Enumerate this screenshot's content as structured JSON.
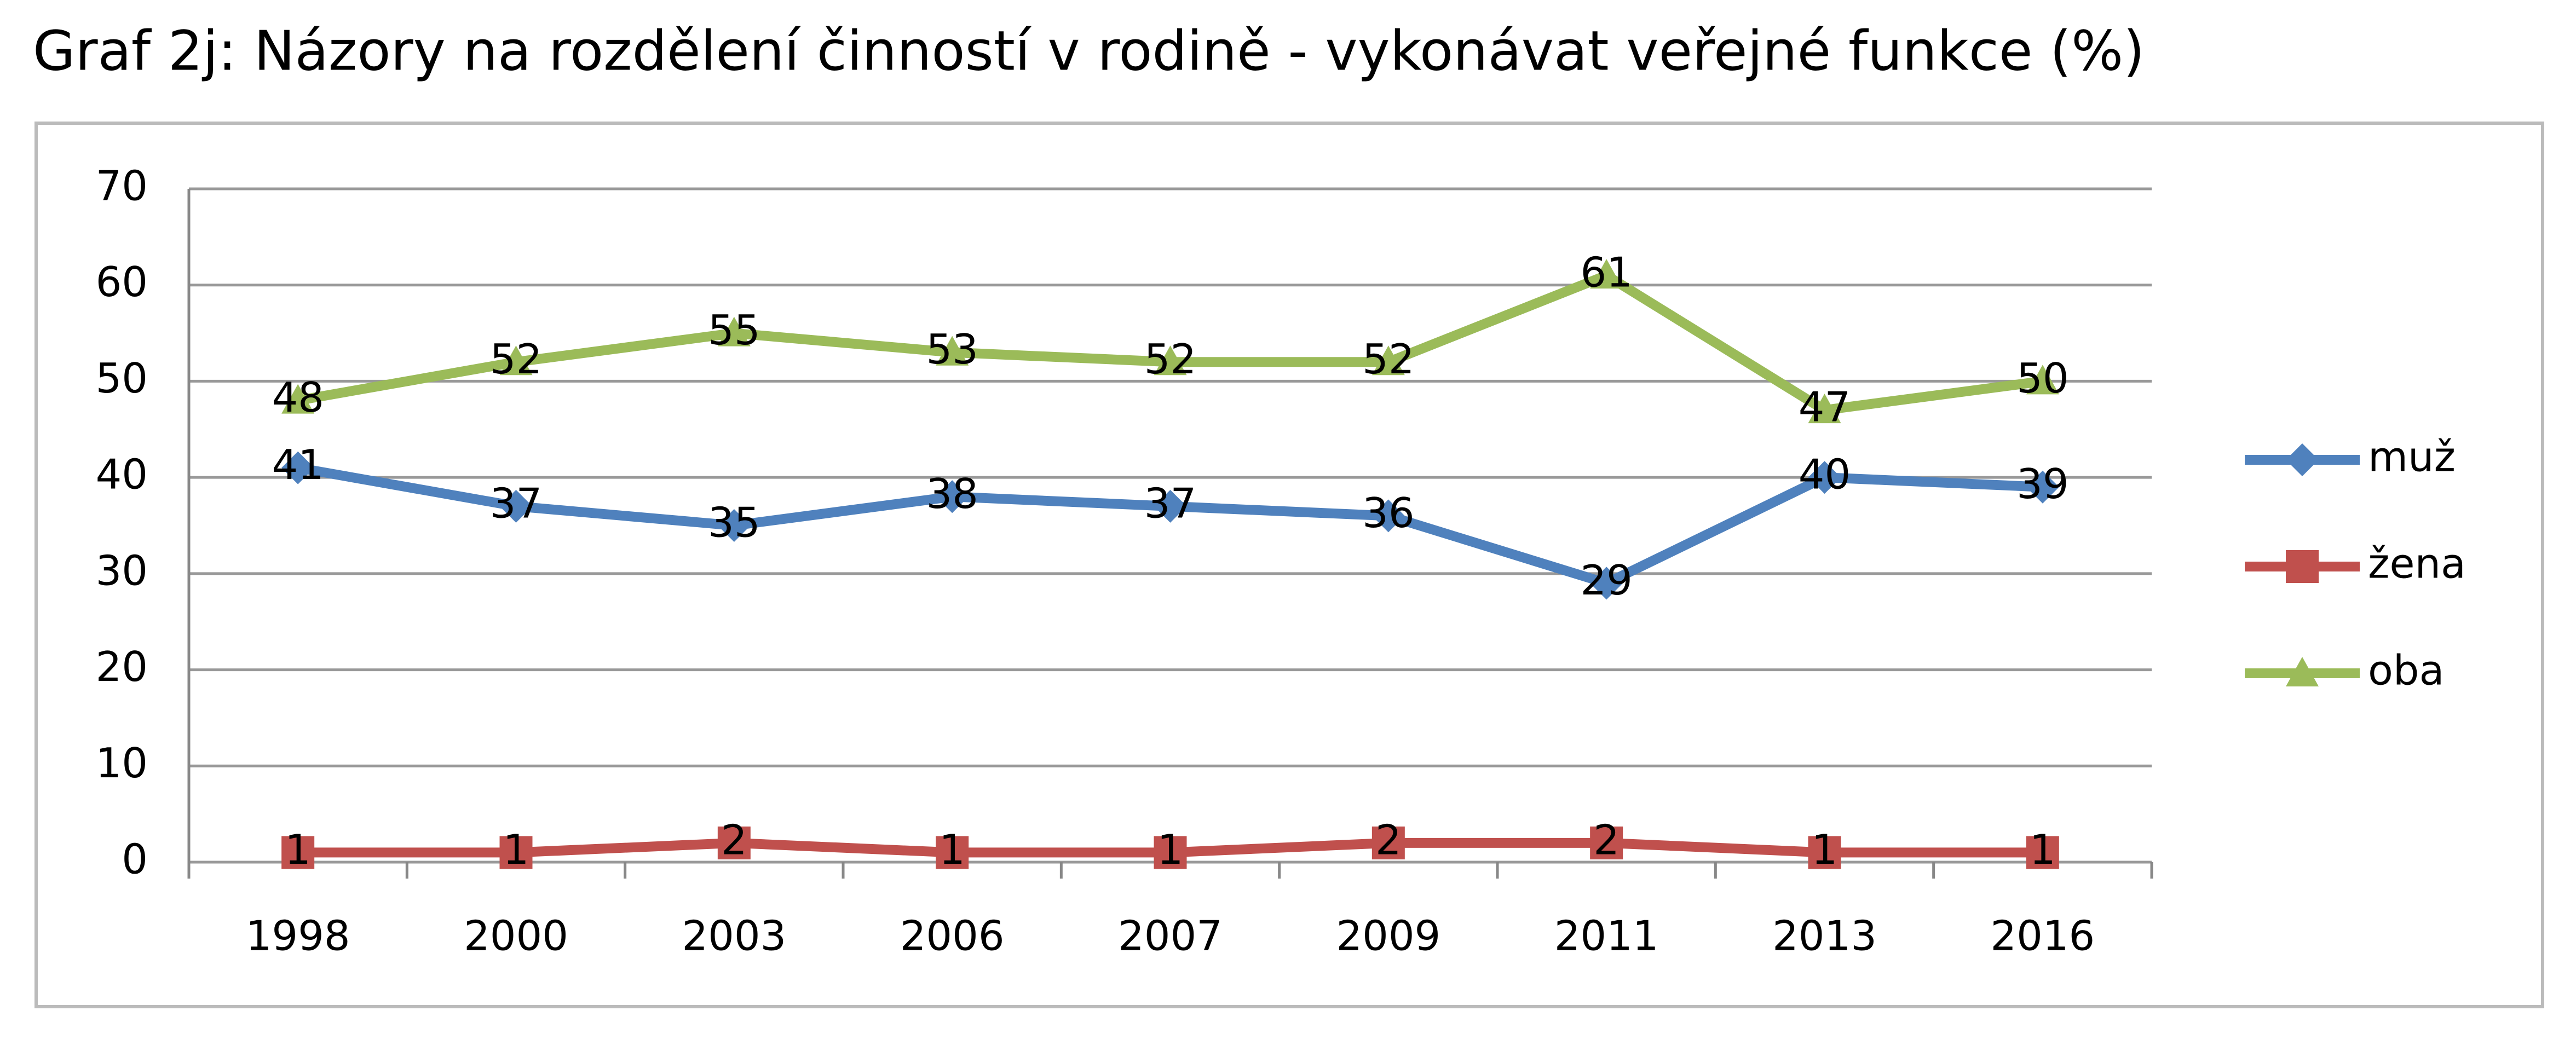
{
  "chart_data": {
    "type": "line",
    "title": "Graf 2j: Názory na rozdělení činností v rodině - vykonávat veřejné funkce (%)",
    "categories": [
      "1998",
      "2000",
      "2003",
      "2006",
      "2007",
      "2009",
      "2011",
      "2013",
      "2016"
    ],
    "series": [
      {
        "name": "muž",
        "color": "#4f81bd",
        "marker": "diamond",
        "values": [
          41,
          37,
          35,
          38,
          37,
          36,
          29,
          40,
          39
        ]
      },
      {
        "name": "žena",
        "color": "#c0504d",
        "marker": "square",
        "values": [
          1,
          1,
          2,
          1,
          1,
          2,
          2,
          1,
          1
        ]
      },
      {
        "name": "oba",
        "color": "#9bbb59",
        "marker": "triangle",
        "values": [
          48,
          52,
          55,
          53,
          52,
          52,
          61,
          47,
          50
        ]
      }
    ],
    "ylim": [
      0,
      70
    ],
    "yticks": [
      0,
      10,
      20,
      30,
      40,
      50,
      60,
      70
    ],
    "grid": true,
    "legend": "right"
  }
}
